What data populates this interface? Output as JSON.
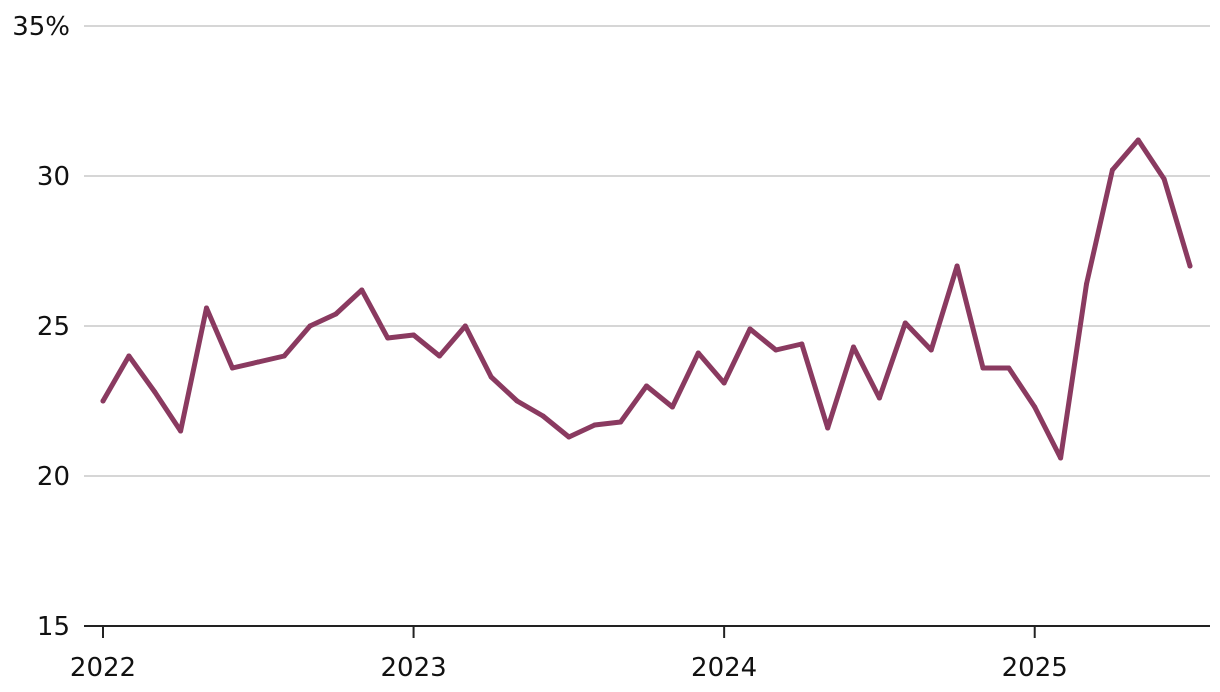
{
  "chart_data": {
    "type": "line",
    "title": "",
    "xlabel": "",
    "ylabel": "",
    "y_unit_suffix": "%",
    "ylim": [
      15,
      35
    ],
    "y_ticks": [
      15,
      20,
      25,
      30,
      35
    ],
    "y_tick_labels": [
      "15",
      "20",
      "25",
      "30",
      "35%"
    ],
    "x_tick_labels": [
      "2022",
      "2023",
      "2024",
      "2025"
    ],
    "x_tick_dates": [
      "2022-01",
      "2023-01",
      "2024-01",
      "2025-01"
    ],
    "x_range": [
      "2022-01",
      "2025-07"
    ],
    "grid": true,
    "colors": {
      "series": "#8a3a60",
      "grid": "#c8c8c8",
      "axis": "#222222"
    },
    "series": [
      {
        "x": [
          "2022-01",
          "2022-02",
          "2022-03",
          "2022-04",
          "2022-05",
          "2022-06",
          "2022-07",
          "2022-08",
          "2022-09",
          "2022-10",
          "2022-11",
          "2022-12",
          "2023-01",
          "2023-02",
          "2023-03",
          "2023-04",
          "2023-05",
          "2023-06",
          "2023-07",
          "2023-08",
          "2023-09",
          "2023-10",
          "2023-11",
          "2023-12",
          "2024-01",
          "2024-02",
          "2024-03",
          "2024-04",
          "2024-05",
          "2024-06",
          "2024-07",
          "2024-08",
          "2024-09",
          "2024-10",
          "2024-11",
          "2024-12",
          "2025-01",
          "2025-02",
          "2025-03",
          "2025-04",
          "2025-05",
          "2025-06",
          "2025-07"
        ],
        "values": [
          22.5,
          24.0,
          22.8,
          21.5,
          25.6,
          23.6,
          23.8,
          24.0,
          25.0,
          25.4,
          26.2,
          24.6,
          24.7,
          24.0,
          25.0,
          23.3,
          22.5,
          22.0,
          21.3,
          21.7,
          21.8,
          23.0,
          22.3,
          24.1,
          23.1,
          24.9,
          24.2,
          24.4,
          21.6,
          24.3,
          22.6,
          25.1,
          24.2,
          27.0,
          23.6,
          23.6,
          22.3,
          20.6,
          26.4,
          30.2,
          31.2,
          29.9,
          27.0
        ]
      }
    ]
  }
}
